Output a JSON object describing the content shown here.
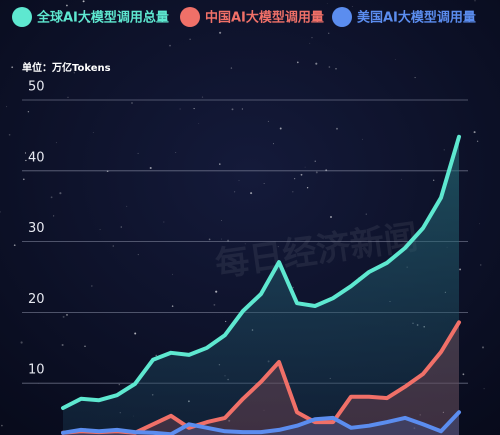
{
  "chart_data": {
    "type": "area-line",
    "unit_label": "单位：万亿Tokens",
    "watermark": "每日经济新闻",
    "categories": [
      null,
      null,
      null,
      null,
      null,
      null,
      null,
      null,
      null,
      null,
      null,
      null,
      null,
      null,
      null,
      null,
      null,
      null,
      null,
      null,
      null,
      null,
      null
    ],
    "ylim": [
      0,
      50
    ],
    "yticks": [
      10,
      20,
      30,
      40,
      50
    ],
    "grid": true,
    "legend": "top",
    "series": [
      {
        "name": "全球AI大模型调用总量",
        "color": "#5ee8d0",
        "values": [
          6.5,
          7.8,
          7.6,
          8.3,
          9.9,
          13.3,
          14.3,
          14.0,
          15.0,
          16.8,
          20.2,
          22.6,
          27.1,
          21.3,
          20.9,
          22.0,
          23.7,
          25.7,
          27.0,
          29.1,
          31.9,
          36.2,
          44.8
        ]
      },
      {
        "name": "中国AI大模型调用量",
        "color": "#f07068",
        "values": [
          3.0,
          3.2,
          3.1,
          3.2,
          3.0,
          4.2,
          5.4,
          3.7,
          4.5,
          5.1,
          7.8,
          10.2,
          13.0,
          5.9,
          4.5,
          4.5,
          8.1,
          8.1,
          7.9,
          9.5,
          11.3,
          14.4,
          18.6
        ]
      },
      {
        "name": "美国AI大模型调用量",
        "color": "#5b8def",
        "values": [
          3.0,
          3.4,
          3.2,
          3.4,
          3.1,
          3.0,
          2.8,
          4.2,
          3.7,
          3.2,
          3.1,
          3.1,
          3.4,
          4.0,
          4.9,
          5.1,
          3.7,
          4.0,
          4.5,
          5.1,
          4.2,
          3.2,
          5.9
        ]
      }
    ]
  }
}
